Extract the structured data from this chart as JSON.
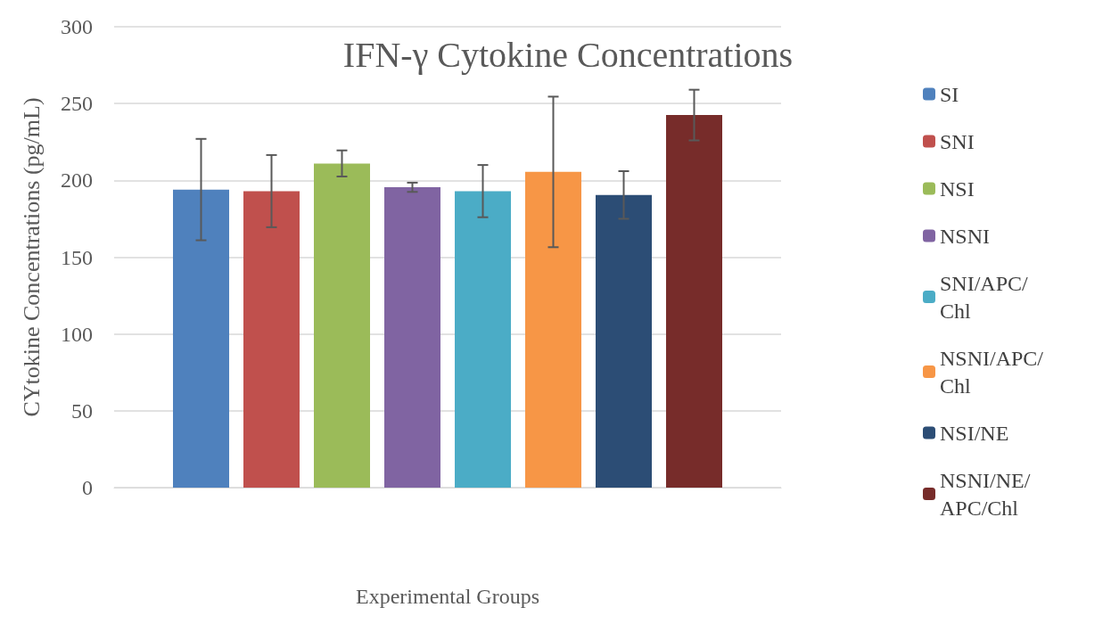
{
  "chart_data": {
    "type": "bar",
    "title": "IFN-γ Cytokine Concentrations",
    "xlabel": "Experimental Groups",
    "ylabel": "CYtokine Concentrations (pg/mL)",
    "categories": [
      null
    ],
    "series": [
      {
        "name": "SI",
        "color": "#4f81bd",
        "values": [
          194
        ],
        "errors": [
          33
        ]
      },
      {
        "name": "SNI",
        "color": "#c0504d",
        "values": [
          193
        ],
        "errors": [
          23.5
        ]
      },
      {
        "name": "NSI",
        "color": "#9bbb59",
        "values": [
          211
        ],
        "errors": [
          8.5
        ]
      },
      {
        "name": "NSNI",
        "color": "#8064a2",
        "values": [
          195.5
        ],
        "errors": [
          3
        ]
      },
      {
        "name": "SNI/APC/Chl",
        "color": "#4bacc6",
        "values": [
          193
        ],
        "errors": [
          17
        ]
      },
      {
        "name": "NSNI/APC/Chl",
        "color": "#f79646",
        "values": [
          205.5
        ],
        "errors": [
          49
        ]
      },
      {
        "name": "NSI/NE",
        "color": "#2c4d75",
        "values": [
          190.5
        ],
        "errors": [
          15.5
        ]
      },
      {
        "name": "NSNI/NE/APC/Chl",
        "color": "#772c2a",
        "values": [
          242.5
        ],
        "errors": [
          16.5
        ]
      }
    ],
    "ylim": [
      0,
      300
    ],
    "yticks": [
      0,
      50,
      100,
      150,
      200,
      250,
      300
    ],
    "grid": "y",
    "legend": "right",
    "tick_labels": "y"
  }
}
